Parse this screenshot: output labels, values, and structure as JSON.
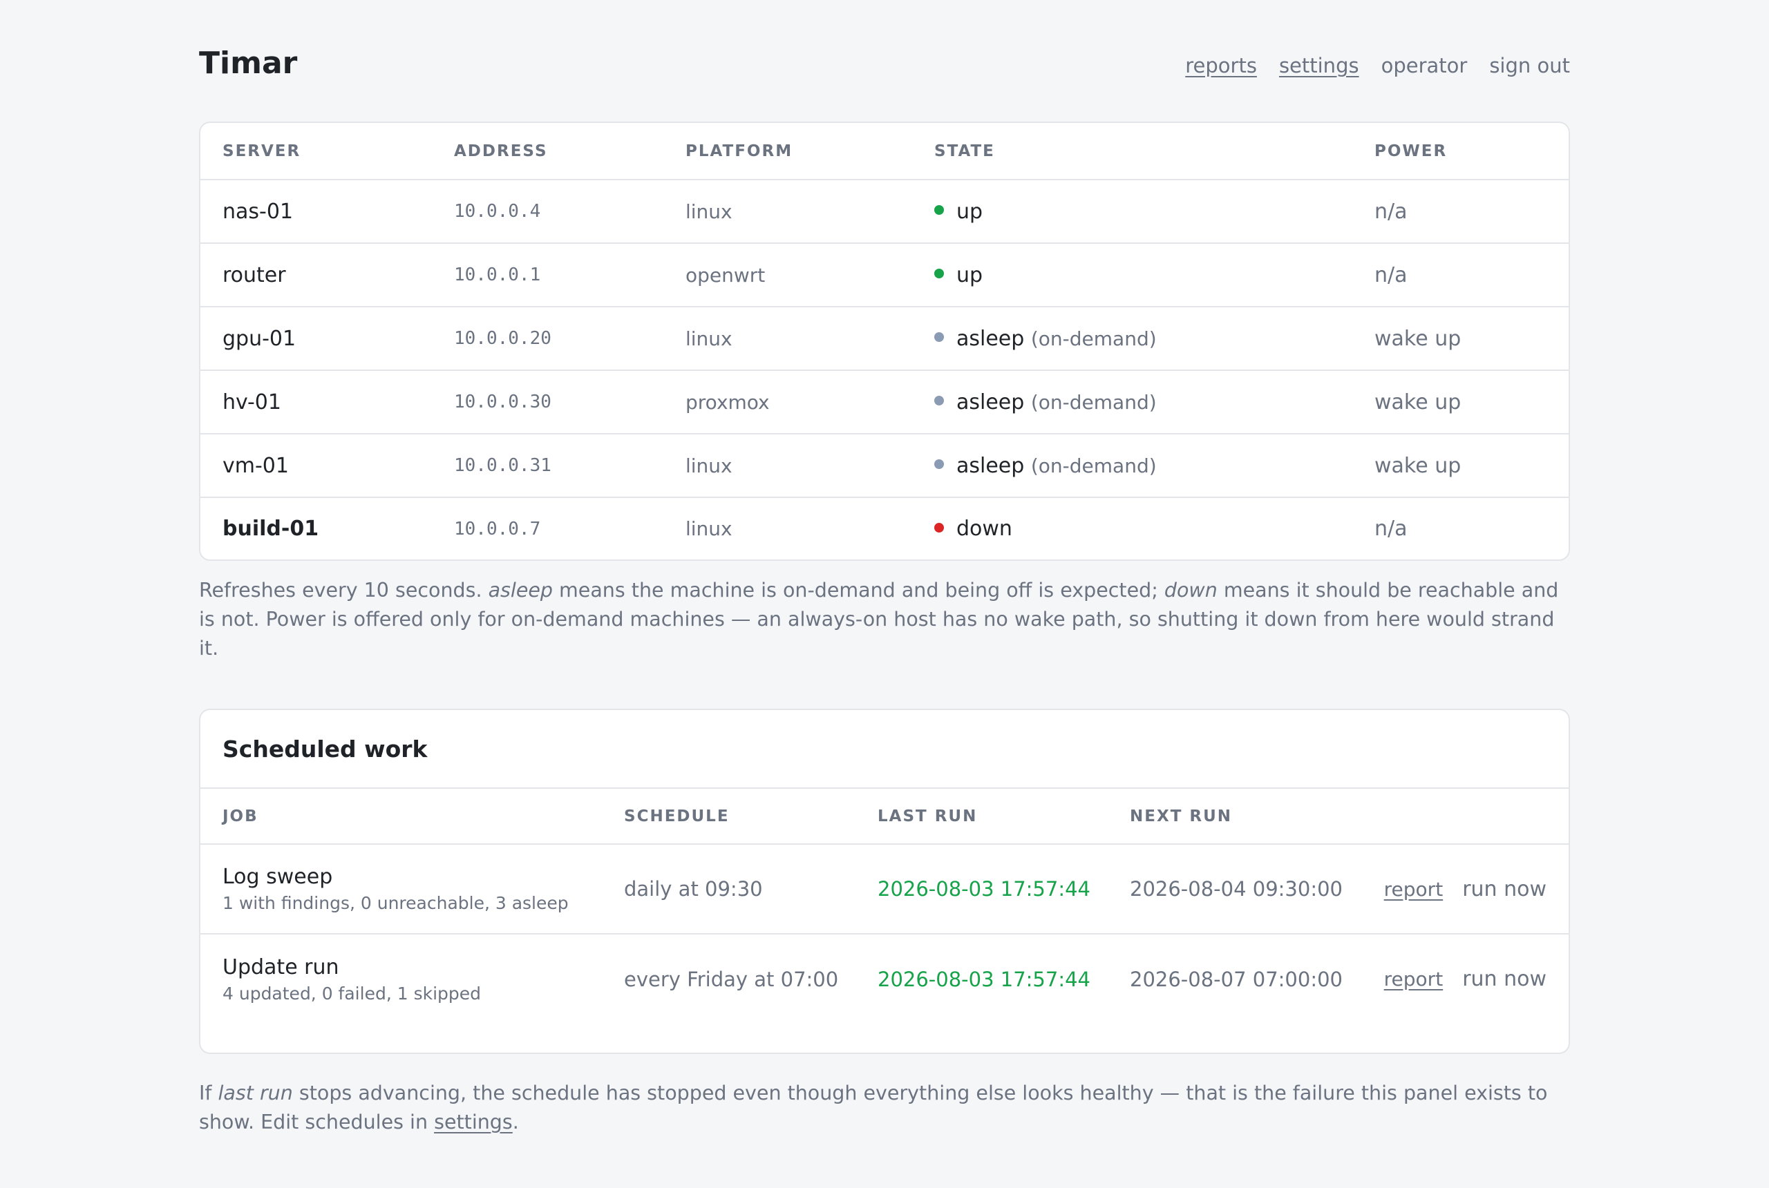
{
  "header": {
    "title": "Timar",
    "nav": {
      "reports": "reports",
      "settings": "settings",
      "operator": "operator",
      "sign_out": "sign out"
    }
  },
  "servers": {
    "columns": [
      "SERVER",
      "ADDRESS",
      "PLATFORM",
      "STATE",
      "POWER"
    ],
    "rows": [
      {
        "name": "nas-01",
        "address": "10.0.0.4",
        "platform": "linux",
        "state": "up",
        "state_note": "",
        "state_color": "#16a34a",
        "power": "n/a"
      },
      {
        "name": "router",
        "address": "10.0.0.1",
        "platform": "openwrt",
        "state": "up",
        "state_note": "",
        "state_color": "#16a34a",
        "power": "n/a"
      },
      {
        "name": "gpu-01",
        "address": "10.0.0.20",
        "platform": "linux",
        "state": "asleep",
        "state_note": "(on-demand)",
        "state_color": "#8b9bb4",
        "power": "wake up"
      },
      {
        "name": "hv-01",
        "address": "10.0.0.30",
        "platform": "proxmox",
        "state": "asleep",
        "state_note": "(on-demand)",
        "state_color": "#8b9bb4",
        "power": "wake up"
      },
      {
        "name": "vm-01",
        "address": "10.0.0.31",
        "platform": "linux",
        "state": "asleep",
        "state_note": "(on-demand)",
        "state_color": "#8b9bb4",
        "power": "wake up"
      },
      {
        "name": "build-01",
        "address": "10.0.0.7",
        "platform": "linux",
        "state": "down",
        "state_note": "",
        "state_color": "#dc2626",
        "power": "n/a"
      }
    ]
  },
  "servers_caption": {
    "p1": "Refreshes every 10 seconds. ",
    "em1": "asleep",
    "p2": " means the machine is on-demand and being off is expected; ",
    "em2": "down",
    "p3": " means it should be reachable and is not. Power is offered only for on-demand machines — an always-on host has no wake path, so shutting it down from here would strand it."
  },
  "scheduled": {
    "title": "Scheduled work",
    "columns": [
      "JOB",
      "SCHEDULE",
      "LAST RUN",
      "NEXT RUN"
    ],
    "report_label": "report",
    "run_now_label": "run now",
    "jobs": [
      {
        "name": "Log sweep",
        "summary": "1 with findings, 0 unreachable, 3 asleep",
        "schedule": "daily at 09:30",
        "last_run": "2026-08-03 17:57:44",
        "next_run": "2026-08-04 09:30:00"
      },
      {
        "name": "Update run",
        "summary": "4 updated, 0 failed, 1 skipped",
        "schedule": "every Friday at 07:00",
        "last_run": "2026-08-03 17:57:44",
        "next_run": "2026-08-07 07:00:00"
      }
    ]
  },
  "scheduled_caption": {
    "p1": "If ",
    "em1": "last run",
    "p2": " stops advancing, the schedule has stopped even though everything else looks healthy — that is the failure this panel exists to show. Edit schedules in ",
    "link": "settings",
    "p3": "."
  },
  "colors": {
    "up": "#16a34a",
    "asleep": "#8b9bb4",
    "down": "#dc2626",
    "last_run": "#16a34a"
  }
}
